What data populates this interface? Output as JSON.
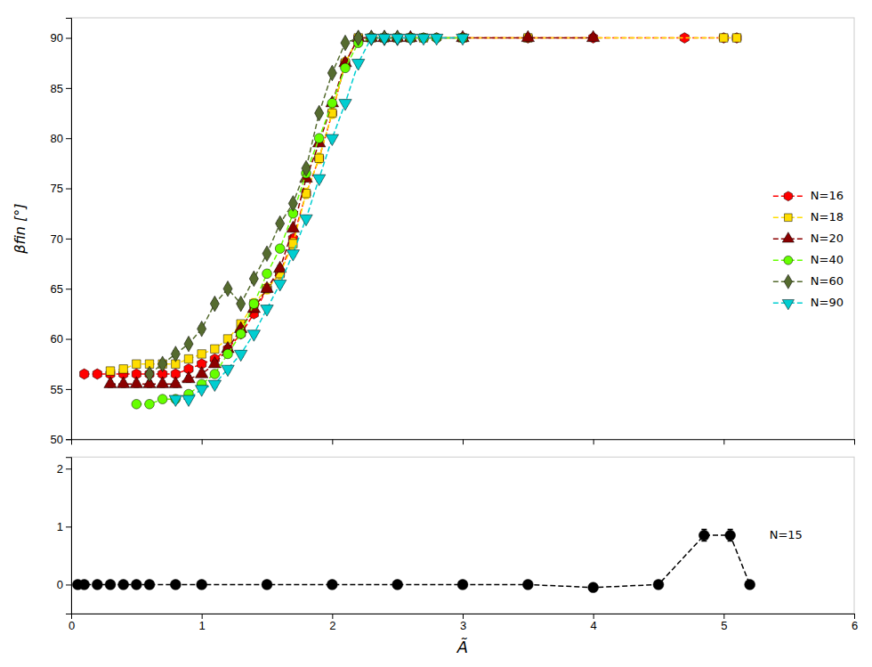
{
  "chart_data": [
    {
      "type": "line",
      "ylabel": "βfin [°]",
      "xlim": [
        0,
        6
      ],
      "ylim": [
        50,
        92
      ],
      "xticks": [
        0,
        1,
        2,
        3,
        4,
        5,
        6
      ],
      "yticks": [
        50,
        55,
        60,
        65,
        70,
        75,
        80,
        85,
        90
      ],
      "tick_labels": "y",
      "grid": false,
      "legend": "right",
      "series": [
        {
          "name": "N=16",
          "color": "#ff0000",
          "marker": "hexagon",
          "line_style": "dashed",
          "x": [
            0.1,
            0.2,
            0.3,
            0.4,
            0.5,
            0.6,
            0.7,
            0.8,
            0.9,
            1.0,
            1.1,
            1.2,
            1.3,
            1.4,
            1.5,
            1.6,
            1.7,
            1.8,
            1.9,
            2.0,
            2.1,
            2.2,
            2.3,
            2.4,
            2.5,
            2.6,
            2.7,
            2.8,
            3.0,
            3.5,
            4.0,
            4.7,
            5.0,
            5.1
          ],
          "values": [
            56.5,
            56.5,
            56.5,
            56.5,
            56.5,
            56.5,
            56.5,
            56.5,
            57.0,
            57.5,
            58.0,
            59.0,
            60.5,
            62.5,
            65.0,
            66.5,
            70.0,
            74.5,
            78.0,
            82.5,
            87.5,
            90.0,
            90.0,
            90.0,
            90.0,
            90.0,
            90.0,
            90.0,
            90.0,
            90.0,
            90.0,
            90.0,
            90.0,
            90.0
          ],
          "yerr": [
            0.3,
            0.3,
            0.3,
            0.3,
            0.3,
            0.3,
            0.3,
            0.3,
            0.3,
            0.3,
            0.3,
            0.3,
            0.3,
            0.3,
            0.3,
            0.3,
            0.3,
            0.3,
            0.3,
            0.3,
            0.3,
            0.3,
            0.3,
            0.3,
            0.3,
            0.3,
            0.3,
            0.3,
            0.3,
            0.3,
            0.3,
            0.3,
            0.3,
            0.3
          ]
        },
        {
          "name": "N=18",
          "color": "#ffdd00",
          "marker": "square",
          "line_style": "dashed",
          "x": [
            0.3,
            0.4,
            0.5,
            0.6,
            0.7,
            0.8,
            0.9,
            1.0,
            1.1,
            1.2,
            1.3,
            1.4,
            1.5,
            1.6,
            1.7,
            1.8,
            1.9,
            2.0,
            2.1,
            2.2,
            2.3,
            2.4,
            2.5,
            2.6,
            2.7,
            3.0,
            3.5,
            5.0,
            5.1
          ],
          "values": [
            56.8,
            57.0,
            57.5,
            57.5,
            57.5,
            57.5,
            58.0,
            58.5,
            59.0,
            60.0,
            61.5,
            63.5,
            65.0,
            66.5,
            69.5,
            74.5,
            78.0,
            82.5,
            87.5,
            90.0,
            90.0,
            90.0,
            90.0,
            90.0,
            90.0,
            90.0,
            90.0,
            90.0,
            90.0
          ],
          "yerr": [
            0.3,
            0.3,
            0.3,
            0.3,
            0.3,
            0.3,
            0.3,
            0.3,
            0.3,
            0.3,
            0.3,
            0.5,
            0.5,
            0.5,
            0.5,
            0.5,
            0.5,
            0.5,
            0.5,
            0.3,
            0.3,
            0.3,
            0.3,
            0.3,
            0.3,
            0.3,
            0.3,
            0.3,
            0.3
          ]
        },
        {
          "name": "N=20",
          "color": "#8b0000",
          "marker": "triangle-up",
          "line_style": "dashed",
          "x": [
            0.3,
            0.4,
            0.5,
            0.6,
            0.7,
            0.8,
            0.9,
            1.0,
            1.1,
            1.2,
            1.3,
            1.4,
            1.5,
            1.6,
            1.7,
            1.8,
            1.9,
            2.0,
            2.1,
            2.2,
            2.3,
            2.4,
            2.5,
            2.6,
            3.0,
            3.5,
            4.0
          ],
          "values": [
            55.5,
            55.5,
            55.5,
            55.5,
            55.5,
            55.5,
            56.0,
            56.5,
            57.5,
            59.0,
            61.0,
            63.0,
            65.0,
            67.0,
            71.0,
            76.0,
            79.5,
            83.5,
            87.5,
            90.0,
            90.0,
            90.0,
            90.0,
            90.0,
            90.0,
            90.0,
            90.0
          ],
          "yerr": [
            0.3,
            0.3,
            0.3,
            0.3,
            0.3,
            0.3,
            0.3,
            0.3,
            0.3,
            0.3,
            0.3,
            0.3,
            0.3,
            0.3,
            0.3,
            0.3,
            0.3,
            0.3,
            0.3,
            0.3,
            0.3,
            0.3,
            0.3,
            0.3,
            0.3,
            0.3,
            0.3
          ]
        },
        {
          "name": "N=40",
          "color": "#66ff00",
          "marker": "circle",
          "line_style": "dashed",
          "x": [
            0.5,
            0.6,
            0.7,
            0.8,
            0.9,
            1.0,
            1.1,
            1.2,
            1.3,
            1.4,
            1.5,
            1.6,
            1.7,
            1.8,
            1.9,
            2.0,
            2.1,
            2.2,
            2.3,
            2.4,
            2.5,
            2.6,
            2.7,
            2.8,
            3.0
          ],
          "values": [
            53.5,
            53.5,
            54.0,
            54.0,
            54.5,
            55.5,
            56.5,
            58.5,
            60.5,
            63.5,
            66.5,
            69.0,
            72.5,
            76.5,
            80.0,
            83.5,
            87.0,
            89.5,
            90.0,
            90.0,
            90.0,
            90.0,
            90.0,
            90.0,
            90.0
          ],
          "yerr": [
            0.3,
            0.3,
            0.3,
            0.3,
            0.3,
            0.3,
            0.3,
            0.3,
            0.3,
            0.3,
            0.3,
            0.3,
            0.3,
            0.3,
            0.3,
            0.3,
            0.3,
            0.3,
            0.3,
            0.3,
            0.3,
            0.3,
            0.3,
            0.3,
            0.3
          ]
        },
        {
          "name": "N=60",
          "color": "#556b2f",
          "marker": "diamond",
          "line_style": "dashed",
          "x": [
            0.6,
            0.7,
            0.8,
            0.9,
            1.0,
            1.1,
            1.2,
            1.3,
            1.4,
            1.5,
            1.6,
            1.7,
            1.8,
            1.9,
            2.0,
            2.1,
            2.2,
            2.3,
            2.4,
            2.5
          ],
          "values": [
            56.5,
            57.5,
            58.5,
            59.5,
            61.0,
            63.5,
            65.0,
            63.5,
            66.0,
            68.5,
            71.5,
            73.5,
            77.0,
            82.5,
            86.5,
            89.5,
            90.0,
            90.0,
            90.0,
            90.0
          ],
          "yerr": [
            0.3,
            0.3,
            0.3,
            0.3,
            0.3,
            0.3,
            0.3,
            0.3,
            0.3,
            0.3,
            0.3,
            0.3,
            0.3,
            0.3,
            0.3,
            0.3,
            0.3,
            0.3,
            0.3,
            0.3
          ]
        },
        {
          "name": "N=90",
          "color": "#00ced1",
          "marker": "triangle-down",
          "line_style": "dashed",
          "x": [
            0.8,
            0.9,
            1.0,
            1.1,
            1.2,
            1.3,
            1.4,
            1.5,
            1.6,
            1.7,
            1.8,
            1.9,
            2.0,
            2.1,
            2.2,
            2.3,
            2.4,
            2.5,
            2.6,
            2.7,
            2.8,
            3.0
          ],
          "values": [
            54.0,
            54.0,
            55.0,
            55.5,
            57.0,
            58.5,
            60.5,
            63.0,
            65.5,
            68.5,
            72.0,
            76.0,
            80.0,
            83.5,
            87.5,
            90.0,
            90.0,
            90.0,
            90.0,
            90.0,
            90.0,
            90.0
          ],
          "yerr": [
            0.3,
            0.3,
            0.3,
            0.3,
            0.3,
            0.3,
            0.3,
            0.3,
            0.3,
            0.3,
            0.3,
            0.3,
            0.3,
            0.3,
            0.3,
            0.3,
            0.3,
            0.3,
            0.3,
            0.3,
            0.3,
            0.3
          ]
        }
      ]
    },
    {
      "type": "line",
      "xlabel": "Ã",
      "xlim": [
        0,
        6
      ],
      "ylim": [
        -0.5,
        2.2
      ],
      "xticks": [
        0,
        1,
        2,
        3,
        4,
        5,
        6
      ],
      "yticks": [
        0,
        1,
        2
      ],
      "grid": false,
      "series": [
        {
          "color": "#000000",
          "marker": "circle",
          "line_style": "dashed",
          "x": [
            0.05,
            0.1,
            0.2,
            0.3,
            0.4,
            0.5,
            0.6,
            0.8,
            1.0,
            1.5,
            2.0,
            2.5,
            3.0,
            3.5,
            4.0,
            4.5,
            4.85,
            5.05,
            5.2
          ],
          "values": [
            0.0,
            0.0,
            0.0,
            0.0,
            0.0,
            0.0,
            0.0,
            0.0,
            0.0,
            0.0,
            0.0,
            0.0,
            0.0,
            0.0,
            -0.05,
            0.0,
            0.85,
            0.85,
            0.0
          ],
          "yerr": [
            0.02,
            0.02,
            0.02,
            0.02,
            0.02,
            0.02,
            0.02,
            0.02,
            0.02,
            0.02,
            0.02,
            0.02,
            0.02,
            0.02,
            0.02,
            0.02,
            0.1,
            0.1,
            0.02
          ]
        }
      ],
      "annotations": [
        {
          "text": "N=15",
          "x": 5.35,
          "y": 0.85
        }
      ]
    }
  ]
}
